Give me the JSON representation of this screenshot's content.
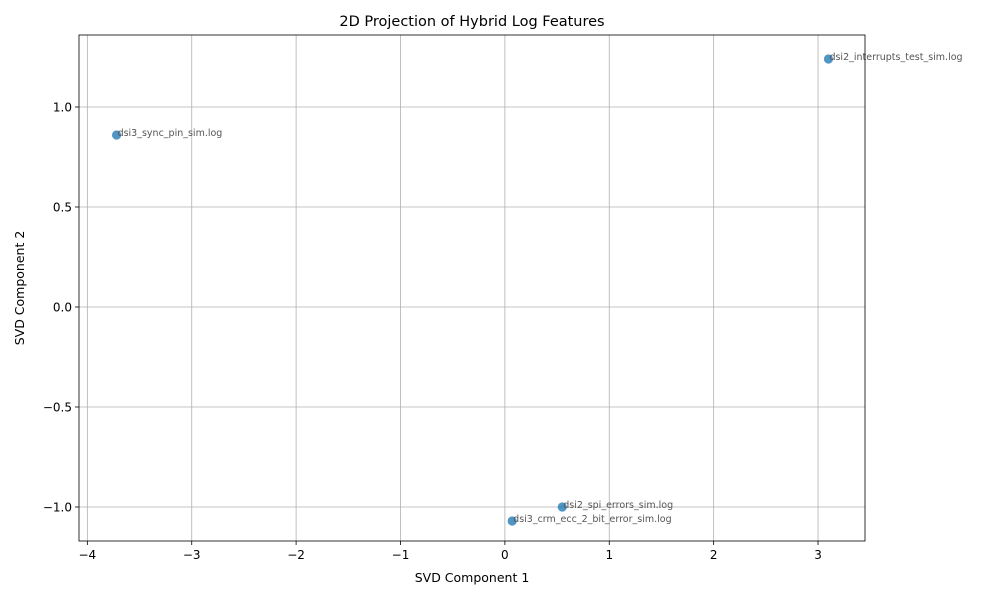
{
  "chart_data": {
    "type": "scatter",
    "title": "2D Projection of Hybrid Log Features",
    "xlabel": "SVD Component 1",
    "ylabel": "SVD Component 2",
    "xlim": [
      -4.08,
      3.45
    ],
    "ylim": [
      -1.17,
      1.36
    ],
    "xticks": [
      -4,
      -3,
      -2,
      -1,
      0,
      1,
      2,
      3
    ],
    "xtick_labels": [
      "−4",
      "−3",
      "−2",
      "−1",
      "0",
      "1",
      "2",
      "3"
    ],
    "yticks": [
      -1.0,
      -0.5,
      0.0,
      0.5,
      1.0
    ],
    "ytick_labels": [
      "−1.0",
      "−0.5",
      "0.0",
      "0.5",
      "1.0"
    ],
    "grid": true,
    "marker_color": "#1f77b4",
    "label_color": "#555555",
    "points": [
      {
        "x": -3.72,
        "y": 0.86,
        "label": "dsi3_sync_pin_sim.log"
      },
      {
        "x": 3.1,
        "y": 1.24,
        "label": "dsi2_interrupts_test_sim.log"
      },
      {
        "x": 0.55,
        "y": -1.0,
        "label": "dsi2_spi_errors_sim.log"
      },
      {
        "x": 0.07,
        "y": -1.07,
        "label": "dsi3_crm_ecc_2_bit_error_sim.log"
      }
    ]
  }
}
